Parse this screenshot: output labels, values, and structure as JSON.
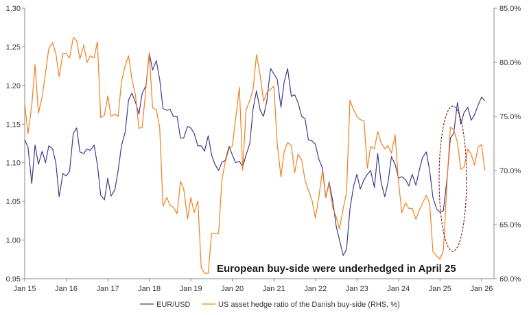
{
  "chart_data": {
    "type": "line",
    "title": "",
    "annotation": "European buy-side were underhedged in April 25",
    "x_ticks": [
      "Jan 15",
      "Jan 16",
      "Jan 17",
      "Jan 18",
      "Jan 19",
      "Jan 20",
      "Jan 21",
      "Jan 22",
      "Jan 23",
      "Jan 24",
      "Jan 25",
      "Jan 26"
    ],
    "xlim": [
      2015.0,
      2026.3
    ],
    "y_left": {
      "ylim": [
        0.95,
        1.3
      ],
      "ticks": [
        "0.95",
        "1.00",
        "1.05",
        "1.10",
        "1.15",
        "1.20",
        "1.25",
        "1.30"
      ]
    },
    "y_right": {
      "ylim": [
        60,
        85
      ],
      "ticks": [
        "60.0%",
        "65.0%",
        "70.0%",
        "75.0%",
        "80.0%",
        "85.0%"
      ],
      "unit": "%"
    },
    "legend_position": "bottom",
    "grid": false,
    "colors": {
      "eurusd": "#3d3a8c",
      "hedge": "#f07f1a",
      "ellipse": "#7a2418"
    },
    "series": [
      {
        "name": "EUR/USD",
        "axis": "left",
        "points": [
          [
            2015.0,
            1.13
          ],
          [
            2015.08,
            1.12
          ],
          [
            2015.17,
            1.073
          ],
          [
            2015.25,
            1.123
          ],
          [
            2015.33,
            1.098
          ],
          [
            2015.42,
            1.115
          ],
          [
            2015.5,
            1.1
          ],
          [
            2015.58,
            1.122
          ],
          [
            2015.67,
            1.118
          ],
          [
            2015.75,
            1.1
          ],
          [
            2015.83,
            1.056
          ],
          [
            2015.92,
            1.086
          ],
          [
            2016.0,
            1.083
          ],
          [
            2016.08,
            1.089
          ],
          [
            2016.17,
            1.138
          ],
          [
            2016.25,
            1.145
          ],
          [
            2016.33,
            1.114
          ],
          [
            2016.42,
            1.112
          ],
          [
            2016.5,
            1.118
          ],
          [
            2016.58,
            1.116
          ],
          [
            2016.67,
            1.123
          ],
          [
            2016.75,
            1.098
          ],
          [
            2016.83,
            1.058
          ],
          [
            2016.92,
            1.052
          ],
          [
            2017.0,
            1.08
          ],
          [
            2017.08,
            1.057
          ],
          [
            2017.17,
            1.065
          ],
          [
            2017.25,
            1.09
          ],
          [
            2017.33,
            1.122
          ],
          [
            2017.42,
            1.14
          ],
          [
            2017.5,
            1.181
          ],
          [
            2017.58,
            1.19
          ],
          [
            2017.67,
            1.178
          ],
          [
            2017.75,
            1.163
          ],
          [
            2017.83,
            1.19
          ],
          [
            2017.92,
            1.2
          ],
          [
            2018.0,
            1.242
          ],
          [
            2018.08,
            1.22
          ],
          [
            2018.17,
            1.232
          ],
          [
            2018.25,
            1.208
          ],
          [
            2018.33,
            1.17
          ],
          [
            2018.42,
            1.168
          ],
          [
            2018.5,
            1.169
          ],
          [
            2018.58,
            1.16
          ],
          [
            2018.67,
            1.16
          ],
          [
            2018.75,
            1.132
          ],
          [
            2018.83,
            1.132
          ],
          [
            2018.92,
            1.147
          ],
          [
            2019.0,
            1.145
          ],
          [
            2019.08,
            1.138
          ],
          [
            2019.17,
            1.122
          ],
          [
            2019.25,
            1.122
          ],
          [
            2019.33,
            1.115
          ],
          [
            2019.42,
            1.135
          ],
          [
            2019.5,
            1.11
          ],
          [
            2019.58,
            1.098
          ],
          [
            2019.67,
            1.09
          ],
          [
            2019.75,
            1.101
          ],
          [
            2019.83,
            1.103
          ],
          [
            2019.92,
            1.121
          ],
          [
            2020.0,
            1.11
          ],
          [
            2020.08,
            1.1
          ],
          [
            2020.17,
            1.102
          ],
          [
            2020.25,
            1.095
          ],
          [
            2020.33,
            1.11
          ],
          [
            2020.42,
            1.125
          ],
          [
            2020.5,
            1.17
          ],
          [
            2020.58,
            1.193
          ],
          [
            2020.67,
            1.168
          ],
          [
            2020.75,
            1.16
          ],
          [
            2020.83,
            1.18
          ],
          [
            2020.92,
            1.222
          ],
          [
            2021.0,
            1.215
          ],
          [
            2021.08,
            1.208
          ],
          [
            2021.17,
            1.172
          ],
          [
            2021.25,
            1.205
          ],
          [
            2021.33,
            1.222
          ],
          [
            2021.42,
            1.186
          ],
          [
            2021.5,
            1.188
          ],
          [
            2021.58,
            1.178
          ],
          [
            2021.67,
            1.16
          ],
          [
            2021.75,
            1.157
          ],
          [
            2021.83,
            1.13
          ],
          [
            2021.92,
            1.128
          ],
          [
            2022.0,
            1.124
          ],
          [
            2022.08,
            1.105
          ],
          [
            2022.17,
            1.093
          ],
          [
            2022.25,
            1.055
          ],
          [
            2022.33,
            1.075
          ],
          [
            2022.42,
            1.05
          ],
          [
            2022.5,
            1.018
          ],
          [
            2022.58,
            1.0
          ],
          [
            2022.67,
            0.98
          ],
          [
            2022.75,
            0.988
          ],
          [
            2022.83,
            1.04
          ],
          [
            2022.92,
            1.07
          ],
          [
            2023.0,
            1.085
          ],
          [
            2023.08,
            1.066
          ],
          [
            2023.17,
            1.078
          ],
          [
            2023.25,
            1.085
          ],
          [
            2023.33,
            1.09
          ],
          [
            2023.42,
            1.068
          ],
          [
            2023.5,
            1.112
          ],
          [
            2023.58,
            1.075
          ],
          [
            2023.67,
            1.056
          ],
          [
            2023.75,
            1.075
          ],
          [
            2023.83,
            1.108
          ],
          [
            2023.92,
            1.098
          ],
          [
            2024.0,
            1.08
          ],
          [
            2024.08,
            1.082
          ],
          [
            2024.17,
            1.078
          ],
          [
            2024.25,
            1.07
          ],
          [
            2024.33,
            1.085
          ],
          [
            2024.42,
            1.071
          ],
          [
            2024.5,
            1.09
          ],
          [
            2024.58,
            1.107
          ],
          [
            2024.67,
            1.114
          ],
          [
            2024.75,
            1.09
          ],
          [
            2024.83,
            1.055
          ],
          [
            2024.92,
            1.04
          ],
          [
            2025.0,
            1.036
          ],
          [
            2025.08,
            1.038
          ],
          [
            2025.17,
            1.08
          ],
          [
            2025.25,
            1.132
          ],
          [
            2025.33,
            1.138
          ],
          [
            2025.42,
            1.178
          ],
          [
            2025.5,
            1.15
          ],
          [
            2025.58,
            1.165
          ],
          [
            2025.67,
            1.172
          ],
          [
            2025.75,
            1.155
          ],
          [
            2025.83,
            1.162
          ],
          [
            2025.92,
            1.175
          ],
          [
            2026.0,
            1.185
          ],
          [
            2026.08,
            1.18
          ]
        ]
      },
      {
        "name": "US asset hedge ratio of the Danish buy-side (RHS, %)",
        "axis": "right",
        "points": [
          [
            2015.0,
            76.2
          ],
          [
            2015.08,
            73.4
          ],
          [
            2015.17,
            76.0
          ],
          [
            2015.25,
            79.8
          ],
          [
            2015.33,
            75.3
          ],
          [
            2015.42,
            76.8
          ],
          [
            2015.5,
            79.0
          ],
          [
            2015.58,
            81.3
          ],
          [
            2015.67,
            81.8
          ],
          [
            2015.75,
            80.8
          ],
          [
            2015.83,
            78.7
          ],
          [
            2015.92,
            80.8
          ],
          [
            2016.0,
            80.8
          ],
          [
            2016.08,
            80.4
          ],
          [
            2016.17,
            82.3
          ],
          [
            2016.25,
            82.0
          ],
          [
            2016.33,
            80.3
          ],
          [
            2016.42,
            81.6
          ],
          [
            2016.5,
            80.0
          ],
          [
            2016.58,
            80.6
          ],
          [
            2016.67,
            80.4
          ],
          [
            2016.75,
            81.9
          ],
          [
            2016.83,
            74.9
          ],
          [
            2016.92,
            75.1
          ],
          [
            2017.0,
            76.9
          ],
          [
            2017.08,
            75.0
          ],
          [
            2017.17,
            75.2
          ],
          [
            2017.25,
            75.0
          ],
          [
            2017.33,
            78.2
          ],
          [
            2017.42,
            79.7
          ],
          [
            2017.5,
            80.6
          ],
          [
            2017.58,
            78.5
          ],
          [
            2017.67,
            76.9
          ],
          [
            2017.75,
            73.9
          ],
          [
            2017.83,
            74.0
          ],
          [
            2017.92,
            77.7
          ],
          [
            2018.0,
            80.8
          ],
          [
            2018.08,
            75.8
          ],
          [
            2018.17,
            75.6
          ],
          [
            2018.25,
            74.0
          ],
          [
            2018.33,
            66.7
          ],
          [
            2018.42,
            67.5
          ],
          [
            2018.5,
            66.8
          ],
          [
            2018.58,
            66.6
          ],
          [
            2018.67,
            66.0
          ],
          [
            2018.75,
            69.0
          ],
          [
            2018.83,
            68.3
          ],
          [
            2018.92,
            65.5
          ],
          [
            2019.0,
            67.5
          ],
          [
            2019.08,
            66.1
          ],
          [
            2019.17,
            67.2
          ],
          [
            2019.25,
            61.0
          ],
          [
            2019.33,
            60.5
          ],
          [
            2019.42,
            60.5
          ],
          [
            2019.5,
            64.2
          ],
          [
            2019.58,
            64.2
          ],
          [
            2019.67,
            64.2
          ],
          [
            2019.75,
            69.2
          ],
          [
            2019.83,
            70.8
          ],
          [
            2019.92,
            72.0
          ],
          [
            2020.0,
            72.3
          ],
          [
            2020.08,
            74.8
          ],
          [
            2020.17,
            77.7
          ],
          [
            2020.25,
            70.0
          ],
          [
            2020.33,
            75.6
          ],
          [
            2020.42,
            76.5
          ],
          [
            2020.5,
            77.5
          ],
          [
            2020.58,
            80.7
          ],
          [
            2020.67,
            78.8
          ],
          [
            2020.75,
            76.4
          ],
          [
            2020.83,
            77.2
          ],
          [
            2020.92,
            77.5
          ],
          [
            2021.0,
            77.8
          ],
          [
            2021.08,
            72.5
          ],
          [
            2021.17,
            69.4
          ],
          [
            2021.25,
            71.8
          ],
          [
            2021.33,
            72.6
          ],
          [
            2021.42,
            72.3
          ],
          [
            2021.5,
            69.8
          ],
          [
            2021.58,
            71.5
          ],
          [
            2021.67,
            71.0
          ],
          [
            2021.75,
            69.1
          ],
          [
            2021.83,
            68.2
          ],
          [
            2021.92,
            67.2
          ],
          [
            2022.0,
            65.6
          ],
          [
            2022.08,
            67.5
          ],
          [
            2022.17,
            70.0
          ],
          [
            2022.25,
            67.5
          ],
          [
            2022.33,
            68.8
          ],
          [
            2022.42,
            66.5
          ],
          [
            2022.5,
            65.7
          ],
          [
            2022.58,
            64.6
          ],
          [
            2022.67,
            66.5
          ],
          [
            2022.75,
            68.0
          ],
          [
            2022.83,
            76.5
          ],
          [
            2022.92,
            75.6
          ],
          [
            2023.0,
            75.0
          ],
          [
            2023.08,
            74.7
          ],
          [
            2023.17,
            74.6
          ],
          [
            2023.25,
            70.2
          ],
          [
            2023.33,
            72.2
          ],
          [
            2023.42,
            72.0
          ],
          [
            2023.5,
            73.6
          ],
          [
            2023.58,
            72.6
          ],
          [
            2023.67,
            72.0
          ],
          [
            2023.75,
            72.3
          ],
          [
            2023.83,
            71.6
          ],
          [
            2023.92,
            73.3
          ],
          [
            2024.0,
            69.0
          ],
          [
            2024.08,
            66.1
          ],
          [
            2024.17,
            67.0
          ],
          [
            2024.25,
            66.5
          ],
          [
            2024.33,
            66.5
          ],
          [
            2024.42,
            65.5
          ],
          [
            2024.5,
            66.3
          ],
          [
            2024.58,
            67.0
          ],
          [
            2024.67,
            67.7
          ],
          [
            2024.75,
            67.0
          ],
          [
            2024.83,
            62.5
          ],
          [
            2024.92,
            62.1
          ],
          [
            2025.0,
            61.8
          ],
          [
            2025.08,
            62.6
          ],
          [
            2025.17,
            69.0
          ],
          [
            2025.25,
            74.0
          ],
          [
            2025.33,
            73.8
          ],
          [
            2025.42,
            72.6
          ],
          [
            2025.5,
            70.1
          ],
          [
            2025.58,
            70.3
          ],
          [
            2025.67,
            72.0
          ],
          [
            2025.75,
            71.5
          ],
          [
            2025.83,
            70.5
          ],
          [
            2025.92,
            72.2
          ],
          [
            2026.0,
            72.4
          ],
          [
            2026.08,
            70.0
          ]
        ]
      }
    ]
  },
  "legend": {
    "eurusd_label": "EUR/USD",
    "hedge_label": "US asset hedge ratio of the Danish buy-side (RHS, %)"
  }
}
